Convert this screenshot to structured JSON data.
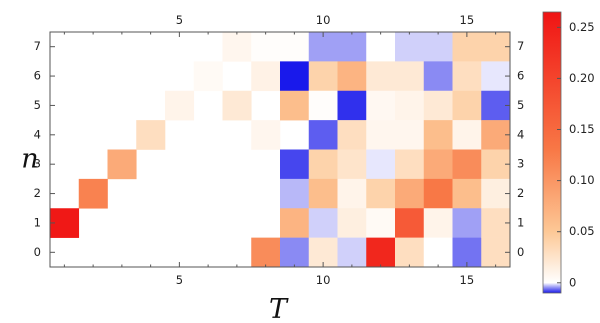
{
  "chart_data": {
    "type": "heatmap",
    "xlabel": "T",
    "ylabel": "n",
    "x_ticks": [
      5,
      10,
      15
    ],
    "y_ticks": [
      0,
      1,
      2,
      3,
      4,
      5,
      6,
      7
    ],
    "xlim": [
      0.5,
      16.5
    ],
    "ylim": [
      -0.5,
      7.5
    ],
    "colorbar": {
      "ticks": [
        0,
        0.05,
        0.1,
        0.15,
        0.2,
        0.25
      ],
      "tick_labels": [
        "0",
        "0.05",
        "0.10",
        "0.15",
        "0.20",
        "0.25"
      ],
      "range": [
        -0.01,
        0.265
      ]
    },
    "cells": [
      {
        "T": 1,
        "n": 1,
        "v": 0.26
      },
      {
        "T": 2,
        "n": 2,
        "v": 0.12
      },
      {
        "T": 3,
        "n": 3,
        "v": 0.08
      },
      {
        "T": 4,
        "n": 4,
        "v": 0.03
      },
      {
        "T": 5,
        "n": 5,
        "v": 0.01
      },
      {
        "T": 6,
        "n": 6,
        "v": 0.005
      },
      {
        "T": 7,
        "n": 7,
        "v": 0.008
      },
      {
        "T": 7,
        "n": 5,
        "v": 0.02
      },
      {
        "T": 8,
        "n": 7,
        "v": 0.002
      },
      {
        "T": 8,
        "n": 6,
        "v": 0.012
      },
      {
        "T": 8,
        "n": 4,
        "v": 0.008
      },
      {
        "T": 8,
        "n": 0,
        "v": 0.11
      },
      {
        "T": 9,
        "n": 7,
        "v": 0.002
      },
      {
        "T": 9,
        "n": 6,
        "v": -0.01
      },
      {
        "T": 9,
        "n": 5,
        "v": 0.06
      },
      {
        "T": 9,
        "n": 3,
        "v": -0.008
      },
      {
        "T": 9,
        "n": 2,
        "v": -0.003
      },
      {
        "T": 9,
        "n": 1,
        "v": 0.07
      },
      {
        "T": 9,
        "n": 0,
        "v": -0.005
      },
      {
        "T": 10,
        "n": 7,
        "v": -0.004
      },
      {
        "T": 10,
        "n": 6,
        "v": 0.04
      },
      {
        "T": 10,
        "n": 5,
        "v": 0.002
      },
      {
        "T": 10,
        "n": 4,
        "v": -0.007
      },
      {
        "T": 10,
        "n": 3,
        "v": 0.04
      },
      {
        "T": 10,
        "n": 2,
        "v": 0.06
      },
      {
        "T": 10,
        "n": 1,
        "v": -0.002
      },
      {
        "T": 10,
        "n": 0,
        "v": 0.02
      },
      {
        "T": 11,
        "n": 7,
        "v": -0.004
      },
      {
        "T": 11,
        "n": 6,
        "v": 0.07
      },
      {
        "T": 11,
        "n": 5,
        "v": -0.009
      },
      {
        "T": 11,
        "n": 4,
        "v": 0.03
      },
      {
        "T": 11,
        "n": 3,
        "v": 0.025
      },
      {
        "T": 11,
        "n": 2,
        "v": 0.01
      },
      {
        "T": 11,
        "n": 1,
        "v": 0.015
      },
      {
        "T": 11,
        "n": 0,
        "v": -0.002
      },
      {
        "T": 12,
        "n": 7,
        "v": 0.0
      },
      {
        "T": 12,
        "n": 6,
        "v": 0.02
      },
      {
        "T": 12,
        "n": 5,
        "v": 0.006
      },
      {
        "T": 12,
        "n": 4,
        "v": 0.008
      },
      {
        "T": 12,
        "n": 3,
        "v": -0.001
      },
      {
        "T": 12,
        "n": 2,
        "v": 0.04
      },
      {
        "T": 12,
        "n": 1,
        "v": 0.005
      },
      {
        "T": 12,
        "n": 0,
        "v": 0.24
      },
      {
        "T": 13,
        "n": 7,
        "v": -0.002
      },
      {
        "T": 13,
        "n": 6,
        "v": 0.02
      },
      {
        "T": 13,
        "n": 5,
        "v": 0.01
      },
      {
        "T": 13,
        "n": 4,
        "v": 0.008
      },
      {
        "T": 13,
        "n": 3,
        "v": 0.03
      },
      {
        "T": 13,
        "n": 2,
        "v": 0.08
      },
      {
        "T": 13,
        "n": 1,
        "v": 0.17
      },
      {
        "T": 13,
        "n": 0,
        "v": 0.03
      },
      {
        "T": 14,
        "n": 7,
        "v": -0.002
      },
      {
        "T": 14,
        "n": 6,
        "v": -0.005
      },
      {
        "T": 14,
        "n": 5,
        "v": 0.02
      },
      {
        "T": 14,
        "n": 4,
        "v": 0.06
      },
      {
        "T": 14,
        "n": 3,
        "v": 0.08
      },
      {
        "T": 14,
        "n": 2,
        "v": 0.13
      },
      {
        "T": 14,
        "n": 1,
        "v": 0.01
      },
      {
        "T": 14,
        "n": 0,
        "v": 0.0
      },
      {
        "T": 15,
        "n": 7,
        "v": 0.04
      },
      {
        "T": 15,
        "n": 6,
        "v": 0.03
      },
      {
        "T": 15,
        "n": 5,
        "v": 0.04
      },
      {
        "T": 15,
        "n": 4,
        "v": 0.01
      },
      {
        "T": 15,
        "n": 3,
        "v": 0.11
      },
      {
        "T": 15,
        "n": 2,
        "v": 0.06
      },
      {
        "T": 15,
        "n": 1,
        "v": -0.004
      },
      {
        "T": 15,
        "n": 0,
        "v": -0.006
      },
      {
        "T": 16,
        "n": 7,
        "v": 0.04
      },
      {
        "T": 16,
        "n": 6,
        "v": -0.001
      },
      {
        "T": 16,
        "n": 5,
        "v": -0.007
      },
      {
        "T": 16,
        "n": 4,
        "v": 0.08
      },
      {
        "T": 16,
        "n": 3,
        "v": 0.04
      },
      {
        "T": 16,
        "n": 2,
        "v": 0.015
      },
      {
        "T": 16,
        "n": 1,
        "v": 0.03
      },
      {
        "T": 16,
        "n": 0,
        "v": 0.03
      }
    ]
  }
}
